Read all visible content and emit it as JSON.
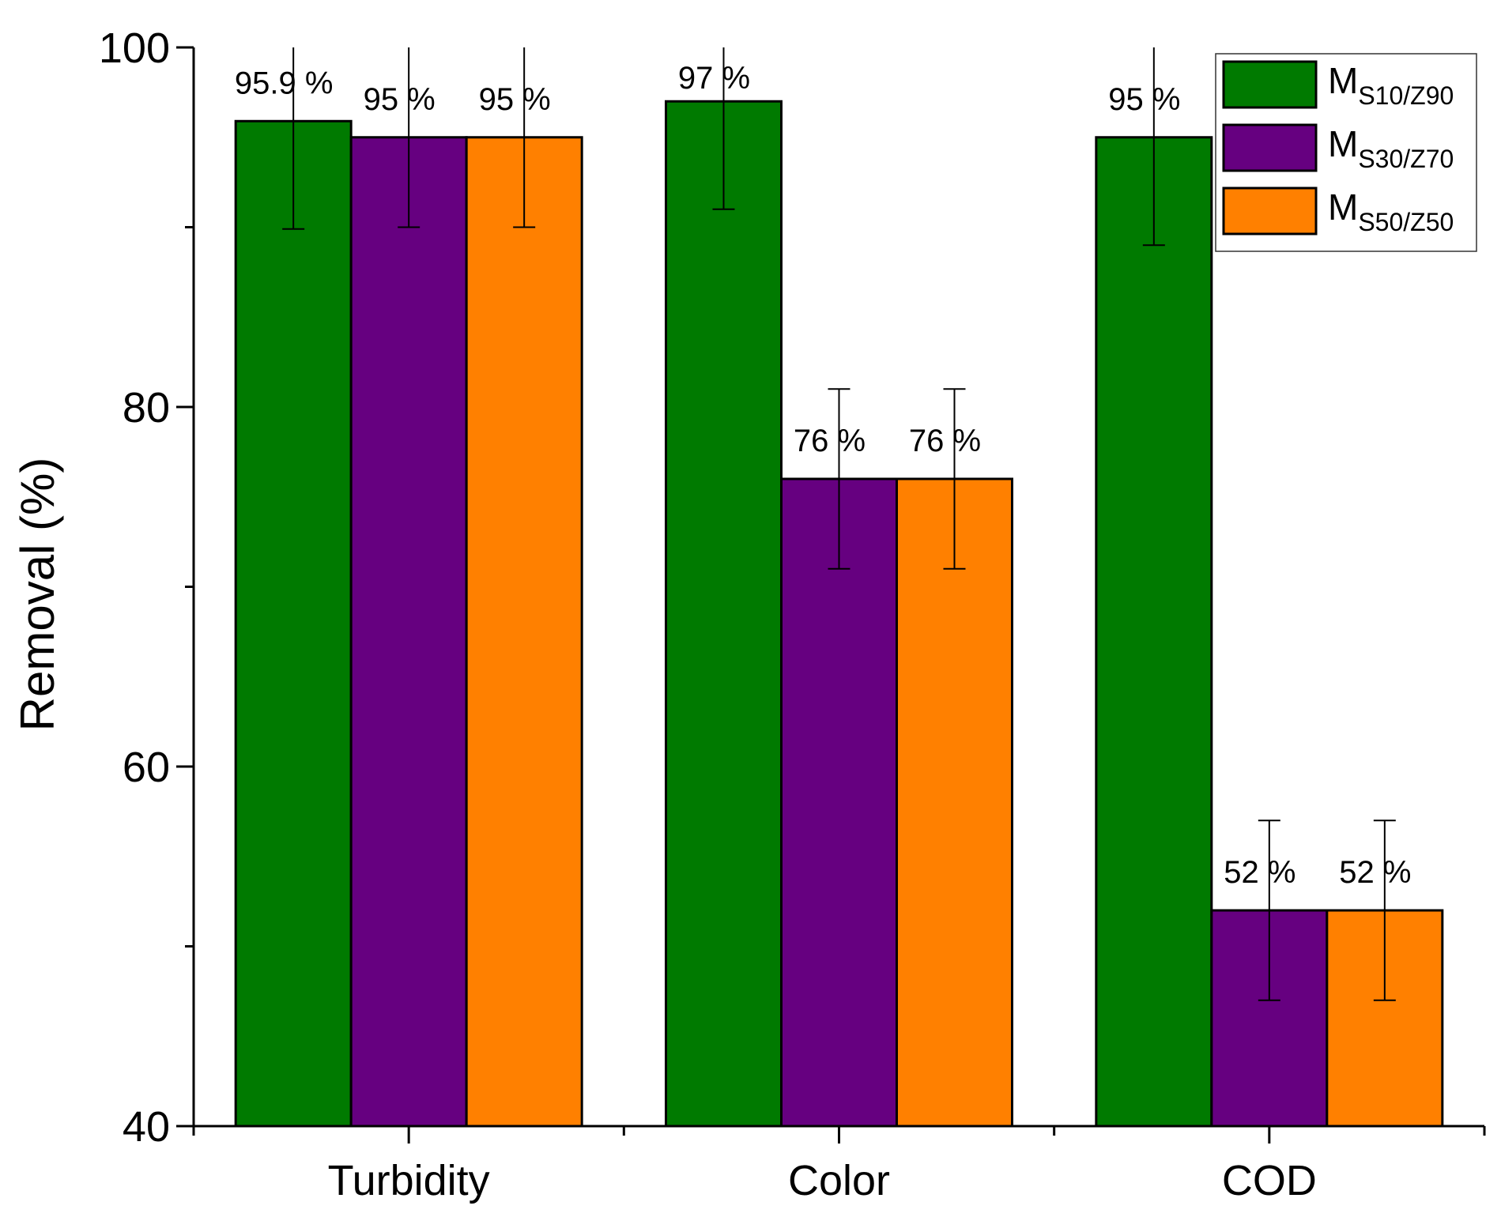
{
  "chart_data": {
    "type": "bar",
    "title": "",
    "xlabel": "",
    "ylabel": "Removal (%)",
    "ylim": [
      40,
      100
    ],
    "yticks": [
      40,
      60,
      80,
      100
    ],
    "yticks_minor": [
      50,
      70,
      90
    ],
    "grid": false,
    "legend_position": "top-right",
    "categories": [
      "Turbidity",
      "Color",
      "COD"
    ],
    "series": [
      {
        "name": "MS10/Z90",
        "legend_main": "M",
        "legend_sub": "S10/Z90",
        "color": "#007a00",
        "values": [
          95.9,
          97,
          95
        ],
        "errors": [
          6,
          6,
          6
        ],
        "labels": [
          "95.9 %",
          "97 %",
          "95 %"
        ]
      },
      {
        "name": "MS30/Z70",
        "legend_main": "M",
        "legend_sub": "S30/Z70",
        "color": "#660080",
        "values": [
          95,
          76,
          52
        ],
        "errors": [
          5,
          5,
          5
        ],
        "labels": [
          "95 %",
          "76 %",
          "52 %"
        ]
      },
      {
        "name": "MS50/Z50",
        "legend_main": "M",
        "legend_sub": "S50/Z50",
        "color": "#ff8000",
        "values": [
          95,
          76,
          52
        ],
        "errors": [
          5,
          5,
          5
        ],
        "labels": [
          "95 %",
          "76 %",
          "52 %"
        ]
      }
    ]
  }
}
